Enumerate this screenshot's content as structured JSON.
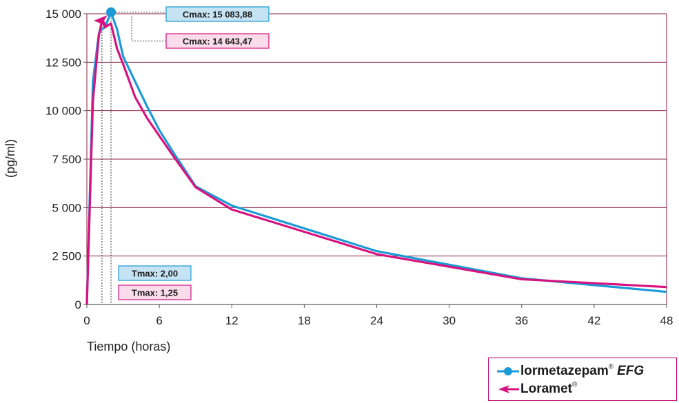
{
  "chart_data": {
    "type": "line",
    "xlabel": "Tiempo (horas)",
    "ylabel": "(pg/ml)",
    "xlim": [
      0,
      48
    ],
    "ylim": [
      0,
      15000
    ],
    "x_ticks": [
      0,
      6,
      12,
      18,
      24,
      30,
      36,
      42,
      48
    ],
    "x_tick_labels": [
      "0",
      "6",
      "12",
      "18",
      "24",
      "30",
      "36",
      "42",
      "48"
    ],
    "y_ticks": [
      0,
      2500,
      5000,
      7500,
      10000,
      12500,
      15000
    ],
    "y_tick_labels": [
      "0",
      "2 500",
      "5 000",
      "7 500",
      "10 000",
      "12 500",
      "15 000"
    ],
    "grid": "horizontal",
    "series": [
      {
        "name": "lormetazepam",
        "name_suffix": "EFG",
        "marker": "circle",
        "color": "#1a9ad6",
        "x": [
          0,
          0.5,
          1,
          1.25,
          1.5,
          2,
          2.5,
          3,
          4,
          5,
          6,
          7,
          9,
          12,
          24,
          36,
          48
        ],
        "y": [
          0,
          11500,
          14000,
          14200,
          14300,
          15083.88,
          14200,
          12800,
          11500,
          10200,
          9000,
          8000,
          6100,
          5100,
          2750,
          1350,
          650
        ]
      },
      {
        "name": "Loramet",
        "name_suffix": "",
        "marker": "arrow",
        "color": "#d6137e",
        "x": [
          0,
          0.5,
          1,
          1.25,
          1.5,
          2,
          2.5,
          3,
          4,
          5,
          6,
          7,
          9,
          12,
          24,
          36,
          48
        ],
        "y": [
          0,
          10500,
          13900,
          14643.47,
          14300,
          14500,
          13200,
          12400,
          10700,
          9600,
          8700,
          7800,
          6050,
          4900,
          2600,
          1300,
          900
        ]
      }
    ],
    "annotations": {
      "cmax": [
        {
          "series": 0,
          "label": "Cmax: 15 083,88",
          "x": 2.0,
          "y": 15083.88
        },
        {
          "series": 1,
          "label": "Cmax: 14 643,47",
          "x": 1.25,
          "y": 14643.47
        }
      ],
      "tmax": [
        {
          "series": 0,
          "label": "Tmax: 2,00",
          "x": 2.0
        },
        {
          "series": 1,
          "label": "Tmax: 1,25",
          "x": 1.25
        }
      ]
    },
    "legend_position": "bottom-right"
  },
  "colors": {
    "blue": "#1a9ad6",
    "magenta": "#d6137e",
    "grid": "#8a2040",
    "blue_box_fill": "#c6e3f4",
    "magenta_box_fill": "#fbdcea"
  },
  "legend": {
    "items": [
      {
        "name": "lormetazepam",
        "suffix": "EFG",
        "icon": "circle-marker"
      },
      {
        "name": "Loramet",
        "suffix": "",
        "icon": "arrow-marker"
      }
    ]
  }
}
